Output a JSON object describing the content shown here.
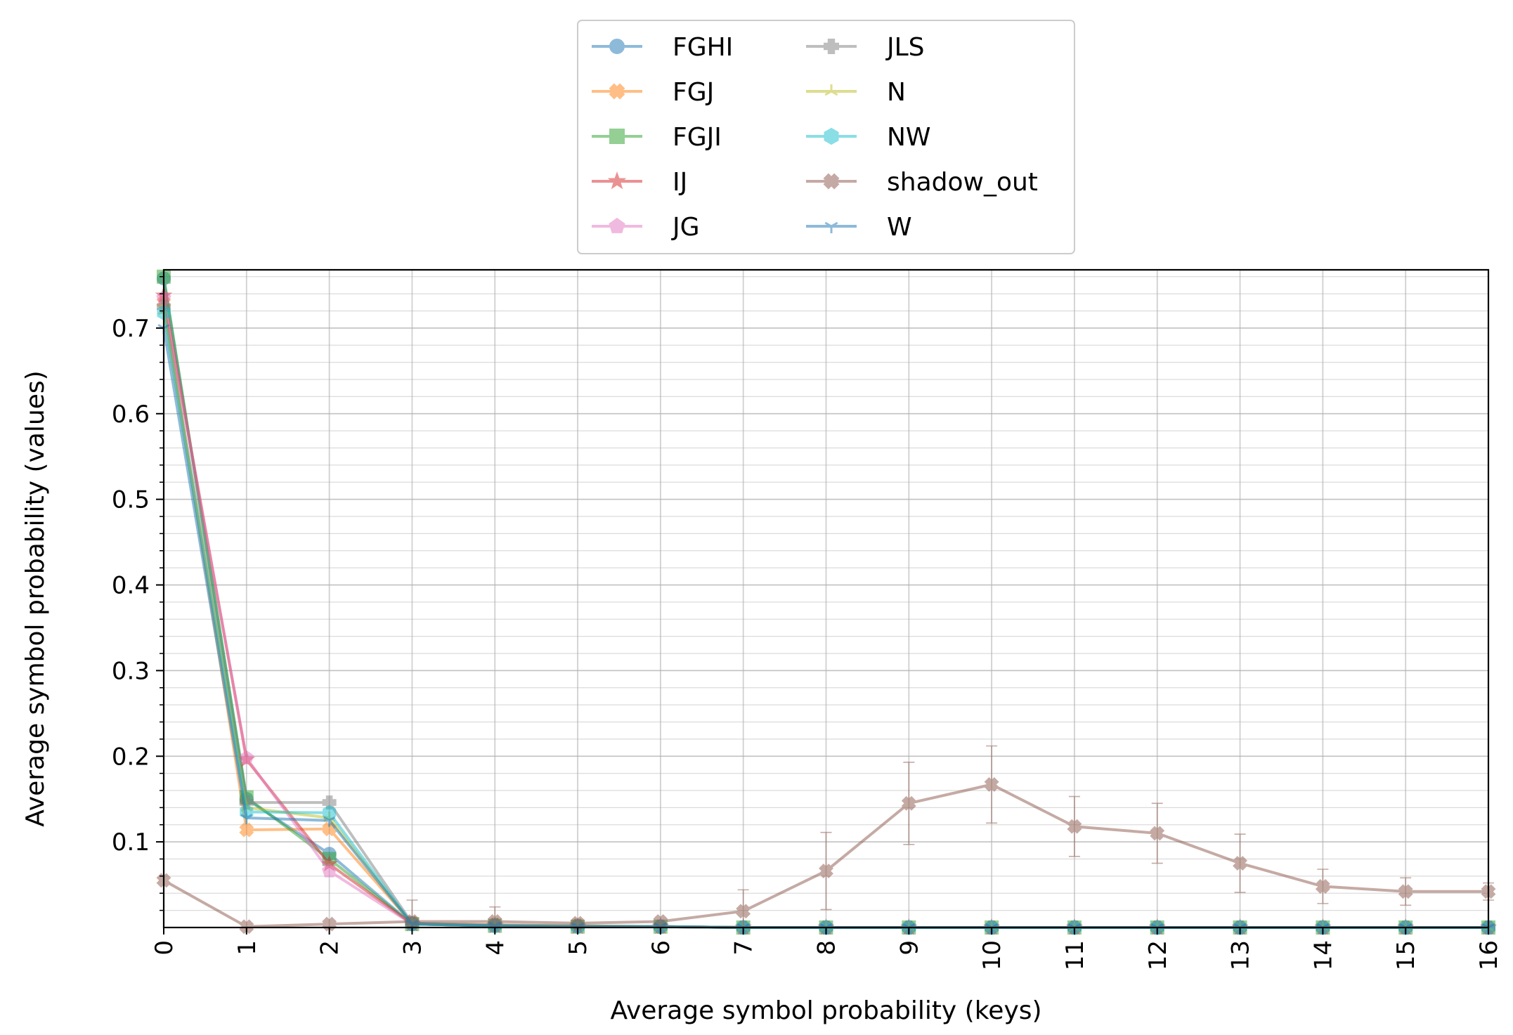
{
  "chart_data": {
    "type": "line",
    "xlabel": "Average symbol probability (keys)",
    "ylabel": "Average symbol probability (values)",
    "xlim": [
      0,
      16
    ],
    "ylim": [
      0,
      0.768
    ],
    "x_ticks": [
      "0",
      "1",
      "2",
      "3",
      "4",
      "5",
      "6",
      "7",
      "8",
      "9",
      "10",
      "11",
      "12",
      "13",
      "14",
      "15",
      "16"
    ],
    "y_ticks": [
      "0.1",
      "0.2",
      "0.3",
      "0.4",
      "0.5",
      "0.6",
      "0.7"
    ],
    "grid": true,
    "legend_position": "top-center",
    "x": [
      0,
      1,
      2,
      3,
      4,
      5,
      6,
      7,
      8,
      9,
      10,
      11,
      12,
      13,
      14,
      15,
      16
    ],
    "series": [
      {
        "name": "FGHI",
        "color": "#1f77b4",
        "marker": "circle",
        "values": [
          0.758,
          0.15,
          0.086,
          0.004,
          0.002,
          0.001,
          0.001,
          0.0,
          0.0,
          0.0,
          0.0,
          0.0,
          0.0,
          0.0,
          0.0,
          0.0,
          0.0
        ]
      },
      {
        "name": "FGJ",
        "color": "#ff7f0e",
        "marker": "x-filled",
        "values": [
          0.73,
          0.114,
          0.115,
          0.005,
          0.003,
          0.002,
          0.001,
          0.0,
          0.0,
          0.0,
          0.0,
          0.0,
          0.0,
          0.0,
          0.0,
          0.0,
          0.0
        ]
      },
      {
        "name": "FGJI",
        "color": "#2ca02c",
        "marker": "square",
        "values": [
          0.76,
          0.152,
          0.08,
          0.004,
          0.002,
          0.001,
          0.001,
          0.0,
          0.0,
          0.0,
          0.0,
          0.0,
          0.0,
          0.0,
          0.0,
          0.0,
          0.0
        ]
      },
      {
        "name": "IJ",
        "color": "#d62728",
        "marker": "star",
        "values": [
          0.738,
          0.196,
          0.074,
          0.004,
          0.002,
          0.001,
          0.001,
          0.0,
          0.0,
          0.0,
          0.0,
          0.0,
          0.0,
          0.0,
          0.0,
          0.0,
          0.0
        ]
      },
      {
        "name": "JG",
        "color": "#e377c2",
        "marker": "pentagon",
        "values": [
          0.735,
          0.198,
          0.066,
          0.004,
          0.002,
          0.001,
          0.001,
          0.0,
          0.0,
          0.0,
          0.0,
          0.0,
          0.0,
          0.0,
          0.0,
          0.0,
          0.0
        ]
      },
      {
        "name": "JLS",
        "color": "#7f7f7f",
        "marker": "plus-filled",
        "values": [
          0.725,
          0.146,
          0.146,
          0.005,
          0.003,
          0.002,
          0.001,
          0.0,
          0.0,
          0.0,
          0.0,
          0.0,
          0.0,
          0.0,
          0.0,
          0.0,
          0.0
        ]
      },
      {
        "name": "N",
        "color": "#bcbd22",
        "marker": "tri-up",
        "values": [
          0.72,
          0.14,
          0.128,
          0.004,
          0.002,
          0.001,
          0.001,
          0.0,
          0.0,
          0.0,
          0.0,
          0.0,
          0.0,
          0.0,
          0.0,
          0.0,
          0.0
        ]
      },
      {
        "name": "NW",
        "color": "#17becf",
        "marker": "hexagon",
        "values": [
          0.718,
          0.135,
          0.134,
          0.004,
          0.002,
          0.001,
          0.001,
          0.0,
          0.0,
          0.0,
          0.0,
          0.0,
          0.0,
          0.0,
          0.0,
          0.0,
          0.0
        ]
      },
      {
        "name": "shadow_out",
        "color": "#8c564b",
        "marker": "x-filled",
        "values": [
          0.055,
          0.001,
          0.004,
          0.007,
          0.007,
          0.005,
          0.007,
          0.019,
          0.066,
          0.145,
          0.167,
          0.118,
          0.11,
          0.075,
          0.048,
          0.042,
          0.042
        ],
        "error": [
          0,
          0,
          0,
          0.025,
          0.017,
          0.005,
          0.005,
          0.025,
          0.045,
          0.048,
          0.045,
          0.035,
          0.035,
          0.034,
          0.02,
          0.016,
          0.01
        ]
      },
      {
        "name": "W",
        "color": "#1f77b4",
        "marker": "tri-down",
        "values": [
          0.7,
          0.128,
          0.125,
          0.004,
          0.002,
          0.001,
          0.001,
          0.0,
          0.0,
          0.0,
          0.0,
          0.0,
          0.0,
          0.0,
          0.0,
          0.0,
          0.0
        ]
      }
    ]
  }
}
